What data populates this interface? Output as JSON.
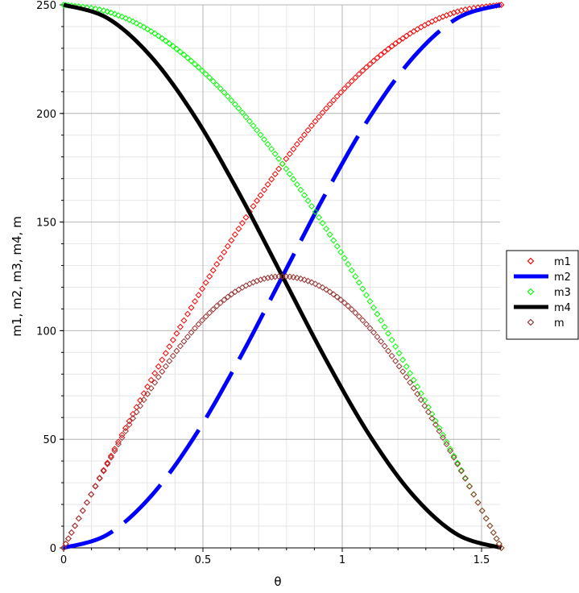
{
  "chart_data": {
    "type": "line",
    "xlabel": "θ",
    "ylabel": "m1,   m2,   m3,   m4,   m",
    "xlim": [
      0,
      1.5708
    ],
    "ylim": [
      0,
      250
    ],
    "x_ticks": [
      "0",
      "0.5",
      "1",
      "1.5"
    ],
    "x_tick_values": [
      0,
      0.5,
      1,
      1.5
    ],
    "y_ticks": [
      "0",
      "50",
      "100",
      "150",
      "200",
      "250"
    ],
    "y_tick_values": [
      0,
      50,
      100,
      150,
      200,
      250
    ],
    "grid": true,
    "legend_position": "right",
    "series": [
      {
        "name": "m1",
        "style": "diamond-markers",
        "color": "#ff0000",
        "x": [
          0,
          0.1571,
          0.3142,
          0.4712,
          0.6283,
          0.7854,
          0.9425,
          1.0996,
          1.2566,
          1.4137,
          1.5708
        ],
        "values": [
          0,
          39.1,
          77.3,
          113.5,
          146.9,
          176.8,
          202.3,
          222.7,
          237.8,
          246.9,
          250
        ]
      },
      {
        "name": "m2",
        "style": "dashed-line",
        "color": "#0000ff",
        "x": [
          0,
          0.1571,
          0.3142,
          0.4712,
          0.6283,
          0.7854,
          0.9425,
          1.0996,
          1.2566,
          1.4137,
          1.5708
        ],
        "values": [
          0,
          6.1,
          23.9,
          51.5,
          86.4,
          125,
          163.6,
          198.5,
          226.1,
          243.9,
          250
        ]
      },
      {
        "name": "m3",
        "style": "diamond-markers",
        "color": "#00ff00",
        "x": [
          0,
          0.1571,
          0.3142,
          0.4712,
          0.6283,
          0.7854,
          0.9425,
          1.0996,
          1.2566,
          1.4137,
          1.5708
        ],
        "values": [
          250,
          246.9,
          237.8,
          222.7,
          202.3,
          176.8,
          146.9,
          113.5,
          77.3,
          39.1,
          0
        ]
      },
      {
        "name": "m4",
        "style": "solid-line",
        "color": "#000000",
        "x": [
          0,
          0.1571,
          0.3142,
          0.4712,
          0.6283,
          0.7854,
          0.9425,
          1.0996,
          1.2566,
          1.4137,
          1.5708
        ],
        "values": [
          250,
          243.9,
          226.1,
          198.5,
          163.6,
          125,
          86.4,
          51.5,
          23.9,
          6.1,
          0
        ]
      },
      {
        "name": "m",
        "style": "diamond-markers",
        "color": "#993333",
        "x": [
          0,
          0.1571,
          0.3142,
          0.4712,
          0.6283,
          0.7854,
          0.9425,
          1.0996,
          1.2566,
          1.4137,
          1.5708
        ],
        "values": [
          0,
          38.6,
          73.5,
          101.1,
          118.9,
          125,
          118.9,
          101.1,
          73.5,
          38.6,
          0
        ]
      }
    ]
  }
}
